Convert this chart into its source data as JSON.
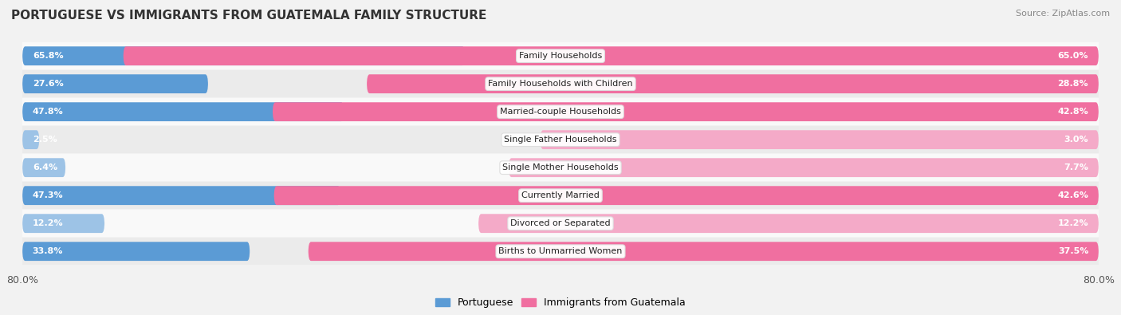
{
  "title": "PORTUGUESE VS IMMIGRANTS FROM GUATEMALA FAMILY STRUCTURE",
  "source": "Source: ZipAtlas.com",
  "categories": [
    "Family Households",
    "Family Households with Children",
    "Married-couple Households",
    "Single Father Households",
    "Single Mother Households",
    "Currently Married",
    "Divorced or Separated",
    "Births to Unmarried Women"
  ],
  "portuguese_values": [
    65.8,
    27.6,
    47.8,
    2.5,
    6.4,
    47.3,
    12.2,
    33.8
  ],
  "guatemala_values": [
    65.0,
    28.8,
    42.8,
    3.0,
    7.7,
    42.6,
    12.2,
    37.5
  ],
  "portuguese_color_dark": "#5b9bd5",
  "portuguese_color_light": "#9dc3e6",
  "guatemala_color_dark": "#f06fa0",
  "guatemala_color_light": "#f4aac8",
  "threshold": 15.0,
  "axis_max": 80.0,
  "background_color": "#f2f2f2",
  "row_bg_even": "#f9f9f9",
  "row_bg_odd": "#ebebeb",
  "title_fontsize": 11,
  "value_fontsize": 8,
  "label_fontsize": 8,
  "legend_fontsize": 9,
  "source_fontsize": 8
}
